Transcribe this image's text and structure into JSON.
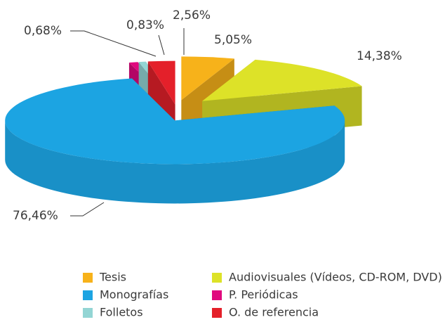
{
  "chart_data": {
    "type": "pie3d",
    "categories": [
      "Tesis",
      "Audiovisuales (Vídeos, CD-ROM, DVD)",
      "Monografías",
      "P. Periódicas",
      "Folletos",
      "O. de referencia"
    ],
    "values": [
      5.05,
      14.38,
      76.46,
      0.83,
      0.68,
      2.56
    ],
    "value_labels": [
      "5,05%",
      "14,38%",
      "76,46%",
      "0,83%",
      "0,68%",
      "2,56%"
    ],
    "colors": [
      "#f7b21a",
      "#dde228",
      "#1ca4e2",
      "#e0097e",
      "#93d5d4",
      "#e4202a"
    ],
    "legend": "bottom"
  }
}
